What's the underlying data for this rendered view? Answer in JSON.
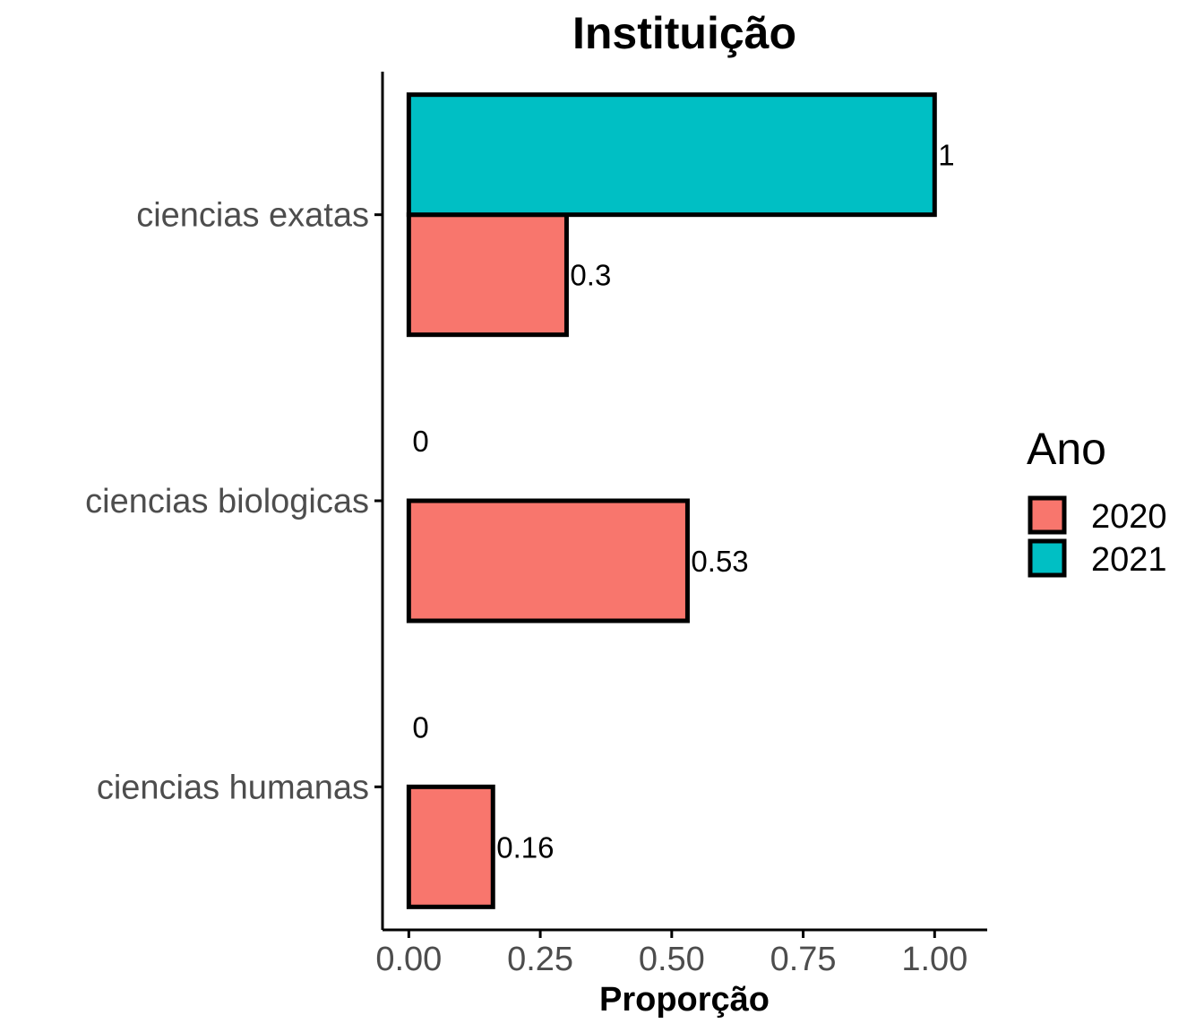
{
  "chart_data": {
    "type": "bar",
    "orientation": "horizontal",
    "title": "Instituição",
    "xlabel": "Proporção",
    "ylabel": "",
    "categories": [
      "ciencias exatas",
      "ciencias biologicas",
      "ciencias humanas"
    ],
    "series": [
      {
        "name": "2020",
        "color": "#F8766D",
        "values": [
          0.3,
          0.53,
          0.16
        ],
        "labels": [
          "0.3",
          "0.53",
          "0.16"
        ]
      },
      {
        "name": "2021",
        "color": "#00BFC4",
        "values": [
          1,
          0,
          0
        ],
        "labels": [
          "1",
          "0",
          "0"
        ]
      }
    ],
    "xlim": [
      -0.05,
      1.1
    ],
    "xticks": [
      0,
      0.25,
      0.5,
      0.75,
      1.0
    ],
    "xtick_labels": [
      "0.00",
      "0.25",
      "0.50",
      "0.75",
      "1.00"
    ],
    "legend": {
      "title": "Ano",
      "position": "right",
      "entries": [
        "2020",
        "2021"
      ]
    },
    "grid": false
  }
}
